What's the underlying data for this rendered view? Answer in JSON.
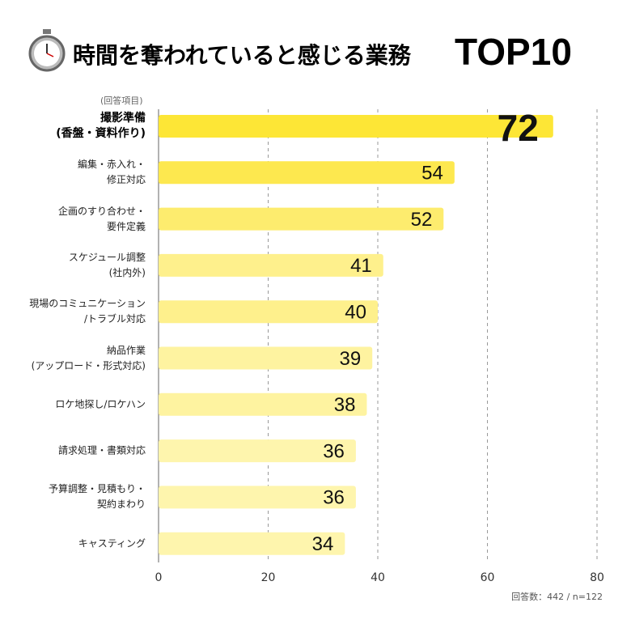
{
  "chart_data": {
    "type": "bar",
    "orientation": "horizontal",
    "title": "時間を奪われていると感じる業務",
    "title_highlight": "TOP10",
    "category_axis_label": "(回答項目)",
    "note": "回答数：442 / n=122",
    "categories": [
      "撮影準備\n(香盤・資料作り)",
      "編集・赤入れ・\n修正対応",
      "企画のすり合わせ・\n要件定義",
      "スケジュール調整\n(社内外)",
      "現場のコミュニケーション\n/トラブル対応",
      "納品作業\n(アップロード・形式対応)",
      "ロケ地探し/ロケハン",
      "請求処理・書類対応",
      "予算調整・見積もり・\n契約まわり",
      "キャスティング"
    ],
    "values": [
      72,
      54,
      52,
      41,
      40,
      39,
      38,
      36,
      36,
      34
    ],
    "colors": [
      "#fde636",
      "#fde84f",
      "#fdec6e",
      "#fef08c",
      "#fef08c",
      "#fef3a0",
      "#fef3a0",
      "#fef5ad",
      "#fef5ad",
      "#fef5ad"
    ],
    "xlim": [
      0,
      80
    ],
    "xticks": [
      0,
      20,
      40,
      60,
      80
    ],
    "grid": true
  }
}
